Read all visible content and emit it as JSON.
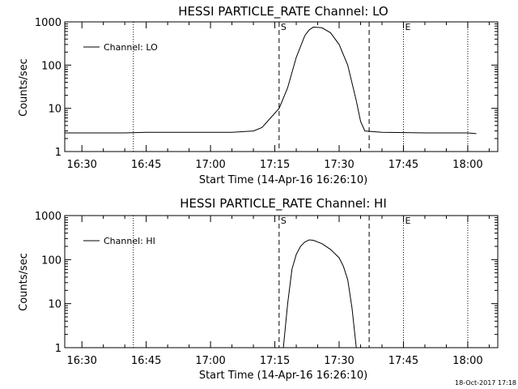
{
  "timestamp": "18-Oct-2017 17:18",
  "chart_data": [
    {
      "type": "line",
      "title": "HESSI PARTICLE_RATE Channel: LO",
      "xlabel": "Start Time (14-Apr-16 16:26:10)",
      "ylabel": "Counts/sec",
      "yscale": "log",
      "xlim": [
        "16:26",
        "18:07"
      ],
      "ylim": [
        1,
        1000
      ],
      "xticks": [
        "16:30",
        "16:45",
        "17:00",
        "17:15",
        "17:30",
        "17:45",
        "18:00"
      ],
      "yticks": [
        "1",
        "10",
        "100",
        "1000"
      ],
      "legend": {
        "label": "Channel: LO",
        "position": "top-left"
      },
      "markers": [
        {
          "time": "16:42",
          "style": "dotted",
          "label": ""
        },
        {
          "time": "17:16",
          "style": "dashed",
          "label": "S"
        },
        {
          "time": "17:37",
          "style": "dashed",
          "label": ""
        },
        {
          "time": "17:45",
          "style": "dotted",
          "label": "E"
        },
        {
          "time": "18:00",
          "style": "dotted",
          "label": ""
        }
      ],
      "series": [
        {
          "name": "Channel: LO",
          "points": [
            [
              "16:26",
              2.7
            ],
            [
              "16:32",
              2.7
            ],
            [
              "16:40",
              2.7
            ],
            [
              "16:45",
              2.8
            ],
            [
              "16:55",
              2.8
            ],
            [
              "17:05",
              2.8
            ],
            [
              "17:10",
              3.0
            ],
            [
              "17:12",
              3.6
            ],
            [
              "17:14",
              6
            ],
            [
              "17:16",
              10
            ],
            [
              "17:18",
              30
            ],
            [
              "17:20",
              150
            ],
            [
              "17:22",
              480
            ],
            [
              "17:23",
              650
            ],
            [
              "17:24",
              760
            ],
            [
              "17:26",
              730
            ],
            [
              "17:28",
              560
            ],
            [
              "17:30",
              300
            ],
            [
              "17:32",
              100
            ],
            [
              "17:34",
              15
            ],
            [
              "17:35",
              5
            ],
            [
              "17:36",
              3
            ],
            [
              "17:40",
              2.8
            ],
            [
              "17:50",
              2.7
            ],
            [
              "18:00",
              2.7
            ],
            [
              "18:02",
              2.6
            ]
          ]
        }
      ]
    },
    {
      "type": "line",
      "title": "HESSI PARTICLE_RATE Channel: HI",
      "xlabel": "Start Time (14-Apr-16 16:26:10)",
      "ylabel": "Counts/sec",
      "yscale": "log",
      "xlim": [
        "16:26",
        "18:07"
      ],
      "ylim": [
        1,
        1000
      ],
      "xticks": [
        "16:30",
        "16:45",
        "17:00",
        "17:15",
        "17:30",
        "17:45",
        "18:00"
      ],
      "yticks": [
        "1",
        "10",
        "100",
        "1000"
      ],
      "legend": {
        "label": "Channel: HI",
        "position": "top-left"
      },
      "markers": [
        {
          "time": "16:42",
          "style": "dotted",
          "label": ""
        },
        {
          "time": "17:16",
          "style": "dashed",
          "label": "S"
        },
        {
          "time": "17:37",
          "style": "dashed",
          "label": ""
        },
        {
          "time": "17:45",
          "style": "dotted",
          "label": "E"
        },
        {
          "time": "18:00",
          "style": "dotted",
          "label": ""
        }
      ],
      "series": [
        {
          "name": "Channel: HI",
          "points": [
            [
              "17:17",
              1.0
            ],
            [
              "17:18",
              10
            ],
            [
              "17:19",
              60
            ],
            [
              "17:20",
              130
            ],
            [
              "17:21",
              200
            ],
            [
              "17:22",
              250
            ],
            [
              "17:23",
              280
            ],
            [
              "17:24",
              275
            ],
            [
              "17:26",
              230
            ],
            [
              "17:28",
              170
            ],
            [
              "17:30",
              110
            ],
            [
              "17:31",
              70
            ],
            [
              "17:32",
              35
            ],
            [
              "17:33",
              8
            ],
            [
              "17:34",
              1.0
            ]
          ]
        }
      ]
    }
  ]
}
